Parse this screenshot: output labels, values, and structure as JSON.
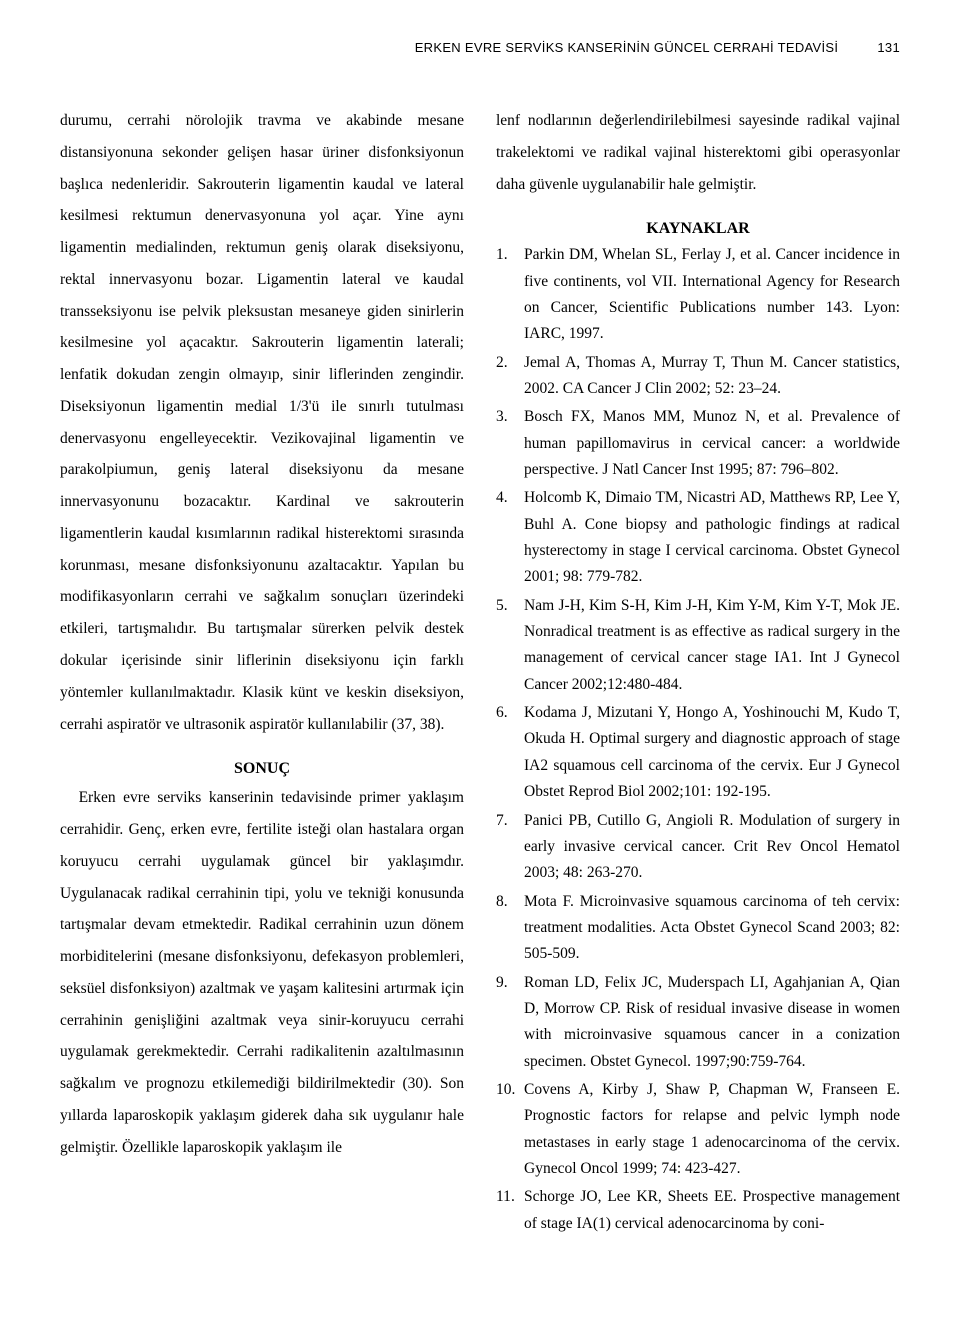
{
  "page": {
    "running_head": "ERKEN EVRE SERVİKS KANSERİNİN GÜNCEL CERRAHİ TEDAVİSİ",
    "page_number": "131",
    "background_color": "#ffffff",
    "text_color": "#000000",
    "body_fontsize": 15.5,
    "heading_fontsize": 16,
    "header_fontsize": 13
  },
  "left": {
    "para1": "durumu, cerrahi nörolojik travma ve akabinde mesane distansiyonuna sekonder gelişen hasar üriner disfonksiyonun başlıca nedenleridir. Sakrouterin ligamentin kaudal ve lateral kesilmesi rektumun denervasyonuna yol açar. Yine aynı ligamentin medialinden, rektumun geniş olarak diseksiyonu, rektal innervasyonu bozar. Ligamentin lateral ve kaudal transseksiyonu ise pelvik pleksustan mesaneye giden sinirlerin kesilmesine yol açacaktır. Sakrouterin ligamentin laterali; lenfatik dokudan zengin olmayıp, sinir liflerinden zengindir. Diseksiyonun ligamentin medial 1/3'ü ile sınırlı tutulması denervasyonu engelleyecektir. Vezikovajinal ligamentin ve parakolpiumun, geniş lateral diseksiyonu da mesane innervasyonunu bozacaktır. Kardinal ve sakrouterin ligamentlerin kaudal kısımlarının radikal histerektomi sırasında korunması, mesane disfonksiyonunu azaltacaktır. Yapılan bu modifikasyonların cerrahi ve sağkalım sonuçları üzerindeki etkileri, tartışmalıdır. Bu tartışmalar sürerken pelvik destek dokular içerisinde sinir liflerinin diseksiyonu için farklı yöntemler kullanılmaktadır. Klasik künt ve keskin diseksiyon, cerrahi aspiratör ve ultrasonik aspiratör kullanılabilir (37, 38).",
    "sonuc_heading": "SONUÇ",
    "para2": "Erken evre serviks kanserinin tedavisinde primer yaklaşım cerrahidir. Genç, erken evre, fertilite isteği olan hastalara organ koruyucu cerrahi uygulamak güncel bir yaklaşımdır. Uygulanacak radikal cerrahinin tipi, yolu ve tekniği konusunda tartışmalar devam etmektedir. Radikal cerrahinin uzun dönem morbiditelerini (mesane disfonksiyonu, defekasyon problemleri, seksüel disfonksiyon) azaltmak ve yaşam kalitesini artırmak için cerrahinin genişliğini azaltmak veya sinir-koruyucu cerrahi uygulamak gerekmektedir. Cerrahi radikalitenin azaltılmasının sağkalım ve prognozu etkilemediği bildirilmektedir (30). Son yıllarda laparoskopik yaklaşım giderek daha sık uygulanır hale gelmiştir. Özellikle laparoskopik yaklaşım ile"
  },
  "right": {
    "para1": "lenf nodlarının değerlendirilebilmesi sayesinde radikal vajinal trakelektomi ve radikal vajinal histerektomi gibi operasyonlar daha güvenle uygulanabilir hale gelmiştir.",
    "kaynaklar_heading": "KAYNAKLAR",
    "references": [
      "Parkin DM, Whelan SL, Ferlay J, et al. Cancer incidence in five continents, vol VII. International Agency for Research on Cancer, Scientific Publications number 143. Lyon: IARC, 1997.",
      "Jemal A, Thomas A, Murray T, Thun M. Cancer statistics, 2002. CA Cancer J Clin 2002; 52: 23–24.",
      "Bosch FX, Manos MM, Munoz N, et al. Prevalence of human papillomavirus in cervical cancer: a worldwide perspective. J Natl Cancer Inst 1995; 87: 796–802.",
      "Holcomb K, Dimaio TM, Nicastri AD, Matthews RP, Lee Y, Buhl A. Cone biopsy and pathologic findings at radical hysterectomy in stage I cervical carcinoma. Obstet Gynecol 2001; 98: 779-782.",
      "Nam J-H, Kim S-H, Kim J-H, Kim Y-M, Kim Y-T, Mok JE. Nonradical treatment is as effective as radical surgery in the management of cervical cancer stage IA1. Int J Gynecol Cancer 2002;12:480-484.",
      "Kodama J, Mizutani Y, Hongo A, Yoshinouchi M, Kudo T, Okuda H. Optimal surgery and diagnostic approach of stage IA2 squamous cell carcinoma of the cervix. Eur J Gynecol Obstet Reprod Biol 2002;101: 192-195.",
      "Panici PB, Cutillo G, Angioli R. Modulation of surgery in early invasive cervical cancer. Crit Rev Oncol Hematol 2003; 48: 263-270.",
      "Mota F. Microinvasive squamous carcinoma of teh cervix: treatment modalities. Acta Obstet Gynecol Scand 2003; 82: 505-509.",
      "Roman LD, Felix JC, Muderspach LI, Agahjanian A, Qian D, Morrow CP. Risk of residual invasive disease in women with microinvasive squamous cancer in a conization specimen. Obstet Gynecol. 1997;90:759-764.",
      "Covens A, Kirby J, Shaw P, Chapman W, Franseen E. Prognostic factors for relapse and pelvic lymph node metastases in early stage 1 adenocarcinoma of the cervix. Gynecol Oncol 1999; 74: 423-427.",
      "Schorge JO, Lee KR, Sheets EE. Prospective management of stage IA(1) cervical adenocarcinoma by coni-"
    ]
  }
}
